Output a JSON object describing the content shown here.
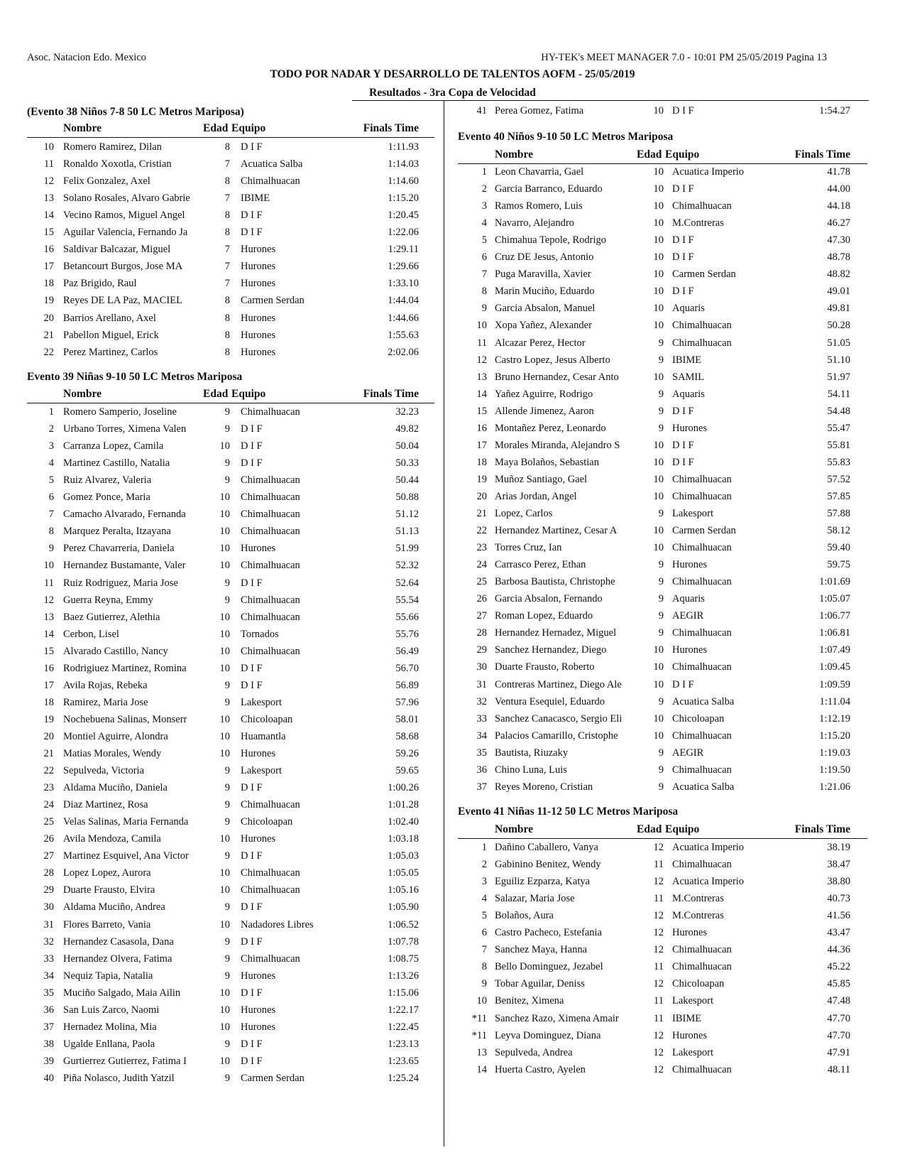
{
  "header": {
    "left": "Asoc. Natacion Edo. Mexico",
    "right": "HY-TEK's MEET MANAGER 7.0 - 10:01 PM  25/05/2019  Pagina 13",
    "title": "TODO POR NADAR Y DESARROLLO DE TALENTOS AOFM - 25/05/2019",
    "subtitle": "Resultados - 3ra Copa de Velocidad"
  },
  "columns": [
    "Nombre",
    "Edad",
    "Equipo",
    "Finals Time"
  ],
  "events": [
    {
      "title": "(Evento 38  Niños 7-8 50 LC Metros Mariposa)",
      "rows": [
        [
          "10",
          "Romero Ramirez, Dilan",
          "8",
          "D I F",
          "1:11.93"
        ],
        [
          "11",
          "Ronaldo Xoxotla, Cristian",
          "7",
          "Acuatica Salba",
          "1:14.03"
        ],
        [
          "12",
          "Felix Gonzalez, Axel",
          "8",
          "Chimalhuacan",
          "1:14.60"
        ],
        [
          "13",
          "Solano Rosales, Alvaro Gabrie",
          "7",
          "IBIME",
          "1:15.20"
        ],
        [
          "14",
          "Vecino Ramos, Miguel Angel",
          "8",
          "D I F",
          "1:20.45"
        ],
        [
          "15",
          "Aguilar Valencia, Fernando Ja",
          "8",
          "D I F",
          "1:22.06"
        ],
        [
          "16",
          "Saldivar Balcazar, Miguel",
          "7",
          "Hurones",
          "1:29.11"
        ],
        [
          "17",
          "Betancourt Burgos, Jose MA",
          "7",
          "Hurones",
          "1:29.66"
        ],
        [
          "18",
          "Paz Brigido, Raul",
          "7",
          "Hurones",
          "1:33.10"
        ],
        [
          "19",
          "Reyes DE LA Paz, MACIEL",
          "8",
          "Carmen Serdan",
          "1:44.04"
        ],
        [
          "20",
          "Barrios Arellano, Axel",
          "8",
          "Hurones",
          "1:44.66"
        ],
        [
          "21",
          "Pabellon Miguel, Erick",
          "8",
          "Hurones",
          "1:55.63"
        ],
        [
          "22",
          "Perez Martinez, Carlos",
          "8",
          "Hurones",
          "2:02.06"
        ]
      ]
    },
    {
      "title": "Evento 39  Niñas 9-10 50 LC Metros Mariposa",
      "rows": [
        [
          "1",
          "Romero Samperio, Joseline",
          "9",
          "Chimalhuacan",
          "32.23"
        ],
        [
          "2",
          "Urbano Torres, Ximena Valen",
          "9",
          "D I F",
          "49.82"
        ],
        [
          "3",
          "Carranza Lopez, Camila",
          "10",
          "D I F",
          "50.04"
        ],
        [
          "4",
          "Martinez Castillo, Natalia",
          "9",
          "D I F",
          "50.33"
        ],
        [
          "5",
          "Ruiz Alvarez, Valeria",
          "9",
          "Chimalhuacan",
          "50.44"
        ],
        [
          "6",
          "Gomez Ponce, Maria",
          "10",
          "Chimalhuacan",
          "50.88"
        ],
        [
          "7",
          "Camacho Alvarado, Fernanda",
          "10",
          "Chimalhuacan",
          "51.12"
        ],
        [
          "8",
          "Marquez Peralta, Itzayana",
          "10",
          "Chimalhuacan",
          "51.13"
        ],
        [
          "9",
          "Perez Chavarreria, Daniela",
          "10",
          "Hurones",
          "51.99"
        ],
        [
          "10",
          "Hernandez Bustamante, Valer",
          "10",
          "Chimalhuacan",
          "52.32"
        ],
        [
          "11",
          "Ruiz Rodriguez, Maria Jose",
          "9",
          "D I F",
          "52.64"
        ],
        [
          "12",
          "Guerra Reyna, Emmy",
          "9",
          "Chimalhuacan",
          "55.54"
        ],
        [
          "13",
          "Baez Gutierrez, Alethia",
          "10",
          "Chimalhuacan",
          "55.66"
        ],
        [
          "14",
          "Cerbon, Lisel",
          "10",
          "Tornados",
          "55.76"
        ],
        [
          "15",
          "Alvarado Castillo, Nancy",
          "10",
          "Chimalhuacan",
          "56.49"
        ],
        [
          "16",
          "Rodrigiuez Martinez, Romina",
          "10",
          "D I F",
          "56.70"
        ],
        [
          "17",
          "Avila Rojas, Rebeka",
          "9",
          "D I F",
          "56.89"
        ],
        [
          "18",
          "Ramirez, Maria Jose",
          "9",
          "Lakesport",
          "57.96"
        ],
        [
          "19",
          "Nochebuena Salinas, Monserr",
          "10",
          "Chicoloapan",
          "58.01"
        ],
        [
          "20",
          "Montiel Aguirre, Alondra",
          "10",
          "Huamantla",
          "58.68"
        ],
        [
          "21",
          "Matias Morales, Wendy",
          "10",
          "Hurones",
          "59.26"
        ],
        [
          "22",
          "Sepulveda, Victoria",
          "9",
          "Lakesport",
          "59.65"
        ],
        [
          "23",
          "Aldama Muciño, Daniela",
          "9",
          "D I F",
          "1:00.26"
        ],
        [
          "24",
          "Diaz Martinez, Rosa",
          "9",
          "Chimalhuacan",
          "1:01.28"
        ],
        [
          "25",
          "Velas Salinas, Maria Fernanda",
          "9",
          "Chicoloapan",
          "1:02.40"
        ],
        [
          "26",
          "Avila Mendoza, Camila",
          "10",
          "Hurones",
          "1:03.18"
        ],
        [
          "27",
          "Martinez Esquivel, Ana Victor",
          "9",
          "D I F",
          "1:05.03"
        ],
        [
          "28",
          "Lopez Lopez, Aurora",
          "10",
          "Chimalhuacan",
          "1:05.05"
        ],
        [
          "29",
          "Duarte Frausto, Elvira",
          "10",
          "Chimalhuacan",
          "1:05.16"
        ],
        [
          "30",
          "Aldama Muciño, Andrea",
          "9",
          "D I F",
          "1:05.90"
        ],
        [
          "31",
          "Flores Barreto, Vania",
          "10",
          "Nadadores Libres",
          "1:06.52"
        ],
        [
          "32",
          "Hernandez Casasola, Dana",
          "9",
          "D I F",
          "1:07.78"
        ],
        [
          "33",
          "Hernandez Olvera, Fatima",
          "9",
          "Chimalhuacan",
          "1:08.75"
        ],
        [
          "34",
          "Nequiz Tapia, Natalia",
          "9",
          "Hurones",
          "1:13.26"
        ],
        [
          "35",
          "Muciño Salgado, Maia Ailin",
          "10",
          "D I F",
          "1:15.06"
        ],
        [
          "36",
          "San Luis Zarco, Naomi",
          "10",
          "Hurones",
          "1:22.17"
        ],
        [
          "37",
          "Hernadez Molina, Mia",
          "10",
          "Hurones",
          "1:22.45"
        ],
        [
          "38",
          "Ugalde Enllana, Paola",
          "9",
          "D I F",
          "1:23.13"
        ],
        [
          "39",
          "Gurtierrez Gutierrez, Fatima I",
          "10",
          "D I F",
          "1:23.65"
        ],
        [
          "40",
          "Piña Nolasco, Judith Yatzil",
          "9",
          "Carmen Serdan",
          "1:25.24"
        ],
        [
          "41",
          "Perea Gomez, Fatima",
          "10",
          "D I F",
          "1:54.27"
        ]
      ]
    },
    {
      "title": "Evento 40  Niños 9-10 50 LC Metros Mariposa",
      "rows": [
        [
          "1",
          "Leon Chavarria, Gael",
          "10",
          "Acuatica Imperio",
          "41.78"
        ],
        [
          "2",
          "Garcia Barranco, Eduardo",
          "10",
          "D I F",
          "44.00"
        ],
        [
          "3",
          "Ramos Romero, Luis",
          "10",
          "Chimalhuacan",
          "44.18"
        ],
        [
          "4",
          "Navarro, Alejandro",
          "10",
          "M.Contreras",
          "46.27"
        ],
        [
          "5",
          "Chimahua Tepole, Rodrigo",
          "10",
          "D I F",
          "47.30"
        ],
        [
          "6",
          "Cruz DE Jesus, Antonio",
          "10",
          "D I F",
          "48.78"
        ],
        [
          "7",
          "Puga Maravilla, Xavier",
          "10",
          "Carmen Serdan",
          "48.82"
        ],
        [
          "8",
          "Marin Muciño, Eduardo",
          "10",
          "D I F",
          "49.01"
        ],
        [
          "9",
          "Garcia Absalon, Manuel",
          "10",
          "Aquaris",
          "49.81"
        ],
        [
          "10",
          "Xopa Yañez, Alexander",
          "10",
          "Chimalhuacan",
          "50.28"
        ],
        [
          "11",
          "Alcazar Perez, Hector",
          "9",
          "Chimalhuacan",
          "51.05"
        ],
        [
          "12",
          "Castro Lopez, Jesus Alberto",
          "9",
          "IBIME",
          "51.10"
        ],
        [
          "13",
          "Bruno Hernandez, Cesar Anto",
          "10",
          "SAMIL",
          "51.97"
        ],
        [
          "14",
          "Yañez Aguirre, Rodrigo",
          "9",
          "Aquaris",
          "54.11"
        ],
        [
          "15",
          "Allende Jimenez, Aaron",
          "9",
          "D I F",
          "54.48"
        ],
        [
          "16",
          "Montañez Perez, Leonardo",
          "9",
          "Hurones",
          "55.47"
        ],
        [
          "17",
          "Morales Miranda, Alejandro S",
          "10",
          "D I F",
          "55.81"
        ],
        [
          "18",
          "Maya Bolaños, Sebastian",
          "10",
          "D I F",
          "55.83"
        ],
        [
          "19",
          "Muñoz Santiago, Gael",
          "10",
          "Chimalhuacan",
          "57.52"
        ],
        [
          "20",
          "Arias Jordan, Angel",
          "10",
          "Chimalhuacan",
          "57.85"
        ],
        [
          "21",
          "Lopez, Carlos",
          "9",
          "Lakesport",
          "57.88"
        ],
        [
          "22",
          "Hernandez Martinez, Cesar A",
          "10",
          "Carmen Serdan",
          "58.12"
        ],
        [
          "23",
          "Torres Cruz, Ian",
          "10",
          "Chimalhuacan",
          "59.40"
        ],
        [
          "24",
          "Carrasco Perez, Ethan",
          "9",
          "Hurones",
          "59.75"
        ],
        [
          "25",
          "Barbosa Bautista, Christophe",
          "9",
          "Chimalhuacan",
          "1:01.69"
        ],
        [
          "26",
          "Garcia Absalon, Fernando",
          "9",
          "Aquaris",
          "1:05.07"
        ],
        [
          "27",
          "Roman Lopez, Eduardo",
          "9",
          "AEGIR",
          "1:06.77"
        ],
        [
          "28",
          "Hernandez Hernadez, Miguel",
          "9",
          "Chimalhuacan",
          "1:06.81"
        ],
        [
          "29",
          "Sanchez Hernandez, Diego",
          "10",
          "Hurones",
          "1:07.49"
        ],
        [
          "30",
          "Duarte Frausto, Roberto",
          "10",
          "Chimalhuacan",
          "1:09.45"
        ],
        [
          "31",
          "Contreras Martinez, Diego Ale",
          "10",
          "D I F",
          "1:09.59"
        ],
        [
          "32",
          "Ventura Esequiel, Eduardo",
          "9",
          "Acuatica Salba",
          "1:11.04"
        ],
        [
          "33",
          "Sanchez Canacasco, Sergio Eli",
          "10",
          "Chicoloapan",
          "1:12.19"
        ],
        [
          "34",
          "Palacios Camarillo, Cristophe",
          "10",
          "Chimalhuacan",
          "1:15.20"
        ],
        [
          "35",
          "Bautista, Riuzaky",
          "9",
          "AEGIR",
          "1:19.03"
        ],
        [
          "36",
          "Chino Luna, Luis",
          "9",
          "Chimalhuacan",
          "1:19.50"
        ],
        [
          "37",
          "Reyes Moreno, Cristian",
          "9",
          "Acuatica Salba",
          "1:21.06"
        ]
      ]
    },
    {
      "title": "Evento 41  Niñas 11-12 50 LC Metros Mariposa",
      "rows": [
        [
          "1",
          "Dañino Caballero, Vanya",
          "12",
          "Acuatica Imperio",
          "38.19"
        ],
        [
          "2",
          "Gabinino Benitez, Wendy",
          "11",
          "Chimalhuacan",
          "38.47"
        ],
        [
          "3",
          "Eguiliz Ezparza, Katya",
          "12",
          "Acuatica Imperio",
          "38.80"
        ],
        [
          "4",
          "Salazar, Maria Jose",
          "11",
          "M.Contreras",
          "40.73"
        ],
        [
          "5",
          "Bolaños, Aura",
          "12",
          "M.Contreras",
          "41.56"
        ],
        [
          "6",
          "Castro Pacheco, Estefania",
          "12",
          "Hurones",
          "43.47"
        ],
        [
          "7",
          "Sanchez Maya, Hanna",
          "12",
          "Chimalhuacan",
          "44.36"
        ],
        [
          "8",
          "Bello Dominguez, Jezabel",
          "11",
          "Chimalhuacan",
          "45.22"
        ],
        [
          "9",
          "Tobar Aguilar, Deniss",
          "12",
          "Chicoloapan",
          "45.85"
        ],
        [
          "10",
          "Benitez, Ximena",
          "11",
          "Lakesport",
          "47.48"
        ],
        [
          "*11",
          "Sanchez Razo, Ximena Amair",
          "11",
          "IBIME",
          "47.70"
        ],
        [
          "*11",
          "Leyva Dominguez, Diana",
          "12",
          "Hurones",
          "47.70"
        ],
        [
          "13",
          "Sepulveda, Andrea",
          "12",
          "Lakesport",
          "47.91"
        ],
        [
          "14",
          "Huerta Castro, Ayelen",
          "12",
          "Chimalhuacan",
          "48.11"
        ]
      ]
    }
  ]
}
